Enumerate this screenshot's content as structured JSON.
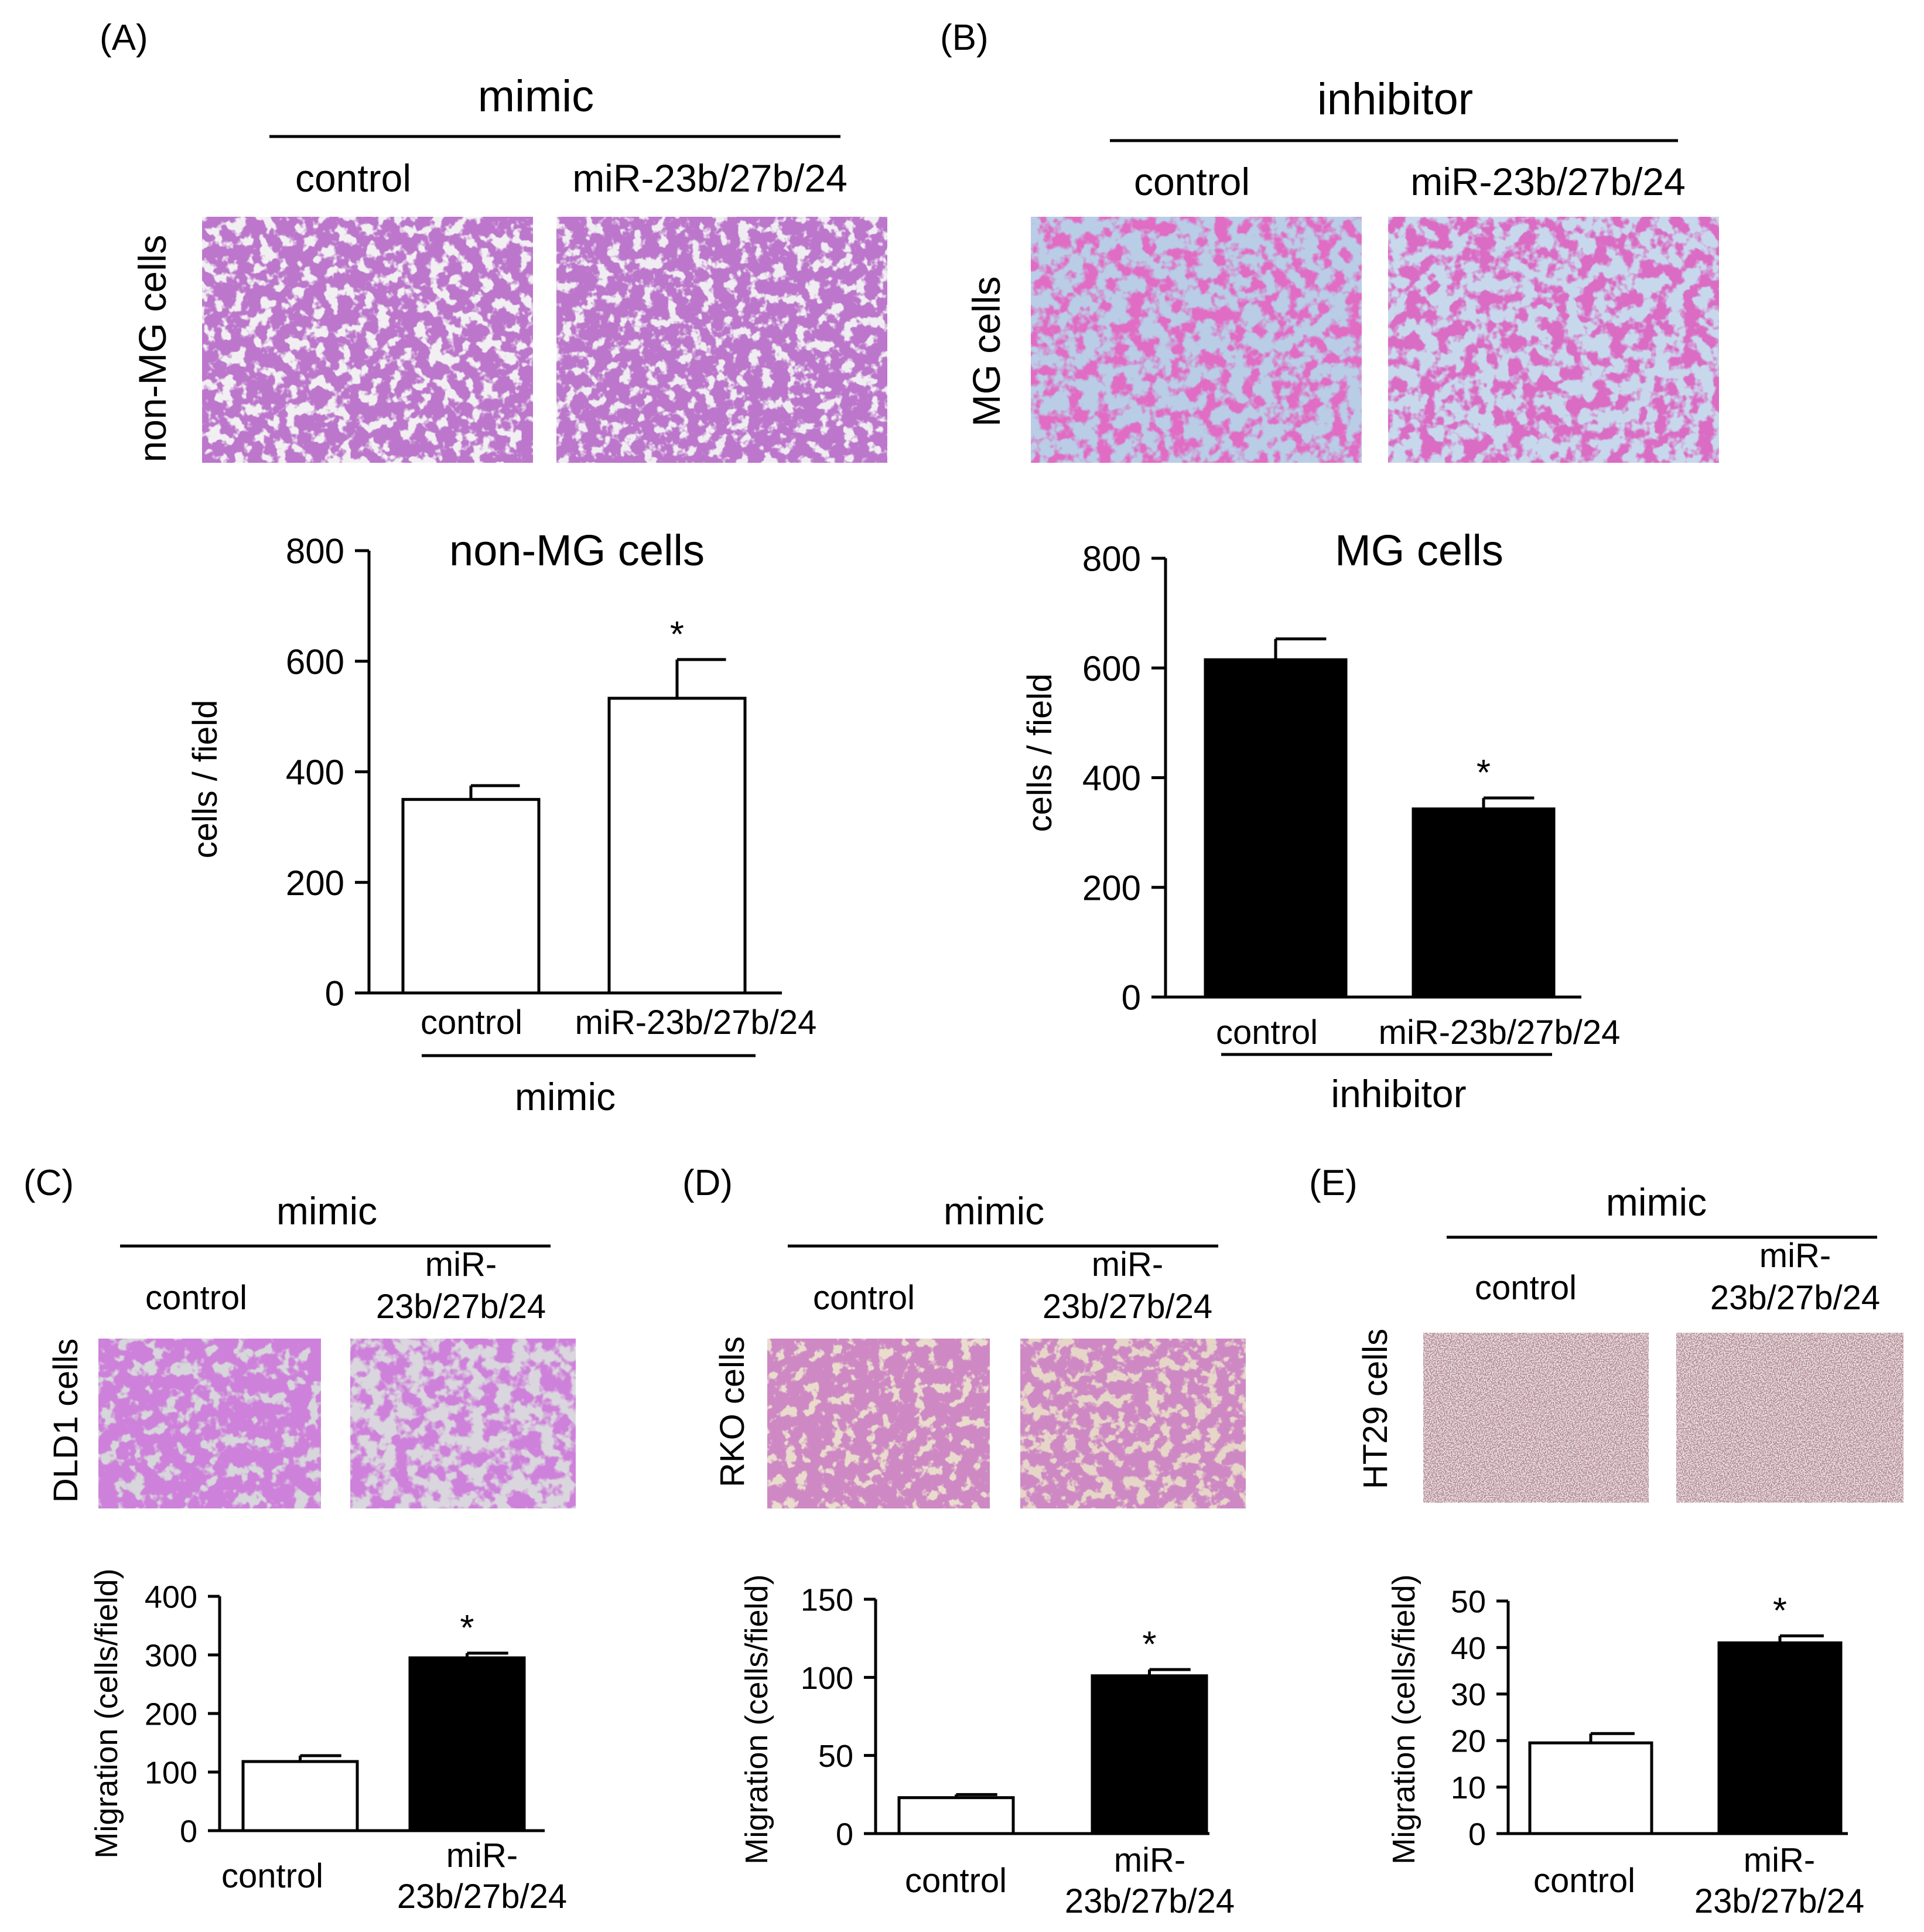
{
  "panels": {
    "A": {
      "letter": "(A)",
      "treatment": "mimic",
      "image_labels": [
        "control",
        "miR-23b/27b/24"
      ],
      "row_label": "non-MG cells",
      "micrograph_style": "light background, sparse purple stained cells"
    },
    "B": {
      "letter": "(B)",
      "treatment": "inhibitor",
      "image_labels": [
        "control",
        "miR-23b/27b/24"
      ],
      "row_label": "MG cells",
      "micrograph_style": "blue background, dense magenta stained cells"
    },
    "C": {
      "letter": "(C)",
      "treatment": "mimic",
      "image_labels": [
        "control",
        "miR-\n23b/27b/24"
      ],
      "row_label": "DLD1 cells",
      "micrograph_style": "grey background, purple stained clusters"
    },
    "D": {
      "letter": "(D)",
      "treatment": "mimic",
      "image_labels": [
        "control",
        "miR-\n23b/27b/24"
      ],
      "row_label": "RKO cells",
      "micrograph_style": "beige background, sparse purple cells"
    },
    "E": {
      "letter": "(E)",
      "treatment": "mimic",
      "image_labels": [
        "control",
        "miR-\n23b/27b/24"
      ],
      "row_label": "HT29 cells",
      "micrograph_style": "pale pink background, fine dark speckles"
    }
  },
  "chart_data": [
    {
      "panel": "A",
      "type": "bar",
      "title": "non-MG cells",
      "ylabel": "cells  / field",
      "xlabel": "mimic",
      "categories": [
        "control",
        "miR-23b/27b/24"
      ],
      "values": [
        350,
        533
      ],
      "errors": [
        25,
        70
      ],
      "significance": [
        "",
        "*"
      ],
      "bar_fills": [
        "#ffffff",
        "#ffffff"
      ],
      "ylim": [
        0,
        800
      ],
      "yticks": [
        0,
        200,
        400,
        600,
        800
      ],
      "grid": false
    },
    {
      "panel": "B",
      "type": "bar",
      "title": "MG cells",
      "ylabel": "cells  / field",
      "xlabel": "inhibitor",
      "categories": [
        "control",
        "miR-23b/27b/24"
      ],
      "values": [
        615,
        343
      ],
      "errors": [
        38,
        20
      ],
      "significance": [
        "",
        "*"
      ],
      "bar_fills": [
        "#000000",
        "#000000"
      ],
      "ylim": [
        0,
        800
      ],
      "yticks": [
        0,
        200,
        400,
        600,
        800
      ],
      "grid": false
    },
    {
      "panel": "C",
      "type": "bar",
      "title": "",
      "ylabel": "Migration (cells/field)",
      "xlabel": "",
      "categories": [
        "control",
        "miR-\n23b/27b/24"
      ],
      "values": [
        118,
        295
      ],
      "errors": [
        10,
        8
      ],
      "significance": [
        "",
        "*"
      ],
      "bar_fills": [
        "#ffffff",
        "#000000"
      ],
      "ylim": [
        0,
        400
      ],
      "yticks": [
        0,
        100,
        200,
        300,
        400
      ],
      "grid": false
    },
    {
      "panel": "D",
      "type": "bar",
      "title": "",
      "ylabel": "Migration (cells/field)",
      "xlabel": "",
      "categories": [
        "control",
        "miR-\n23b/27b/24"
      ],
      "values": [
        23,
        101
      ],
      "errors": [
        2,
        4
      ],
      "significance": [
        "",
        "*"
      ],
      "bar_fills": [
        "#ffffff",
        "#000000"
      ],
      "ylim": [
        0,
        150
      ],
      "yticks": [
        0,
        50,
        100,
        150
      ],
      "grid": false
    },
    {
      "panel": "E",
      "type": "bar",
      "title": "",
      "ylabel": "Migration (cells/field)",
      "xlabel": "",
      "categories": [
        "control",
        "miR-\n23b/27b/24"
      ],
      "values": [
        19.5,
        41
      ],
      "errors": [
        2,
        1.5
      ],
      "significance": [
        "",
        "*"
      ],
      "bar_fills": [
        "#ffffff",
        "#000000"
      ],
      "ylim": [
        0,
        50
      ],
      "yticks": [
        0,
        10,
        20,
        30,
        40,
        50
      ],
      "grid": false
    }
  ]
}
